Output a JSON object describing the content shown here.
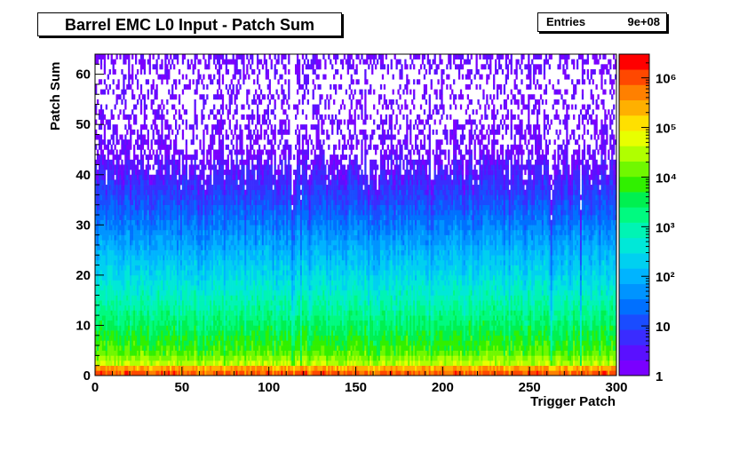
{
  "chart_data": {
    "type": "heatmap",
    "title": "Barrel EMC L0 Input - Patch Sum",
    "xlabel": "Trigger Patch",
    "ylabel": "Patch Sum",
    "xlim": [
      0,
      300
    ],
    "ylim": [
      0,
      64
    ],
    "x_ticks": [
      0,
      50,
      100,
      150,
      200,
      250,
      300
    ],
    "y_ticks": [
      0,
      10,
      20,
      30,
      40,
      50,
      60
    ],
    "z_scale": "log",
    "z_range": [
      1,
      3000000
    ],
    "z_tick_labels": [
      "1",
      "10",
      "10²",
      "10³",
      "10⁴",
      "10⁵",
      "10⁶"
    ],
    "z_tick_values": [
      1,
      10,
      100,
      1000,
      10000,
      100000,
      1000000
    ],
    "stats": {
      "label": "Entries",
      "value": "9e+08"
    },
    "profile": {
      "description_of_rows": "approximate counts per bin vs patch sum (row value)",
      "patch_sum": [
        0,
        1,
        2,
        5,
        10,
        15,
        20,
        25,
        30,
        35,
        40,
        45,
        50,
        55,
        60,
        62
      ],
      "typical_counts": [
        300000,
        2000000,
        40000,
        8000,
        2500,
        800,
        250,
        90,
        30,
        10,
        4,
        2,
        1.5,
        1.2,
        1,
        2
      ]
    },
    "low_count_patches": [
      113,
      118,
      262,
      279
    ]
  },
  "colors": {
    "palette": [
      "#7a00ff",
      "#5a10ff",
      "#3a2cff",
      "#1a4cff",
      "#0070ff",
      "#0094ff",
      "#00b4ff",
      "#00d0f0",
      "#00e8d8",
      "#00f4b4",
      "#00fa80",
      "#00f050",
      "#30f000",
      "#70f800",
      "#b0ff00",
      "#e8ff00",
      "#ffe000",
      "#ffb000",
      "#ff8000",
      "#ff4800",
      "#ff0000"
    ]
  }
}
